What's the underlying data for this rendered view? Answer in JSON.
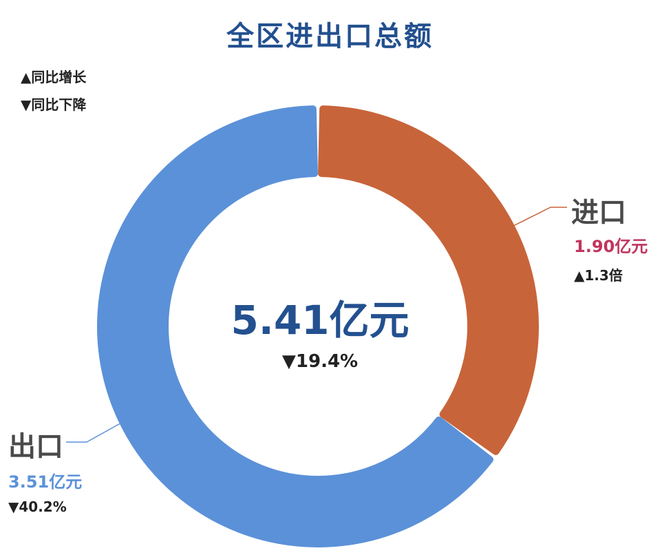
{
  "chart_data": {
    "type": "pie",
    "title": "全区进出口总额",
    "legend": {
      "up": "▲同比增长",
      "down": "▼同比下降"
    },
    "total": {
      "value": "5.41亿元",
      "change": "▼19.4%"
    },
    "slices": [
      {
        "name": "进口",
        "value": 1.9,
        "value_label": "1.90亿元",
        "change": "▲1.3倍",
        "color": "#c8643a",
        "label_color": "#c0355f"
      },
      {
        "name": "出口",
        "value": 3.51,
        "value_label": "3.51亿元",
        "change": "▼40.2%",
        "color": "#5b91d8",
        "label_color": "#5b91d8"
      }
    ]
  }
}
